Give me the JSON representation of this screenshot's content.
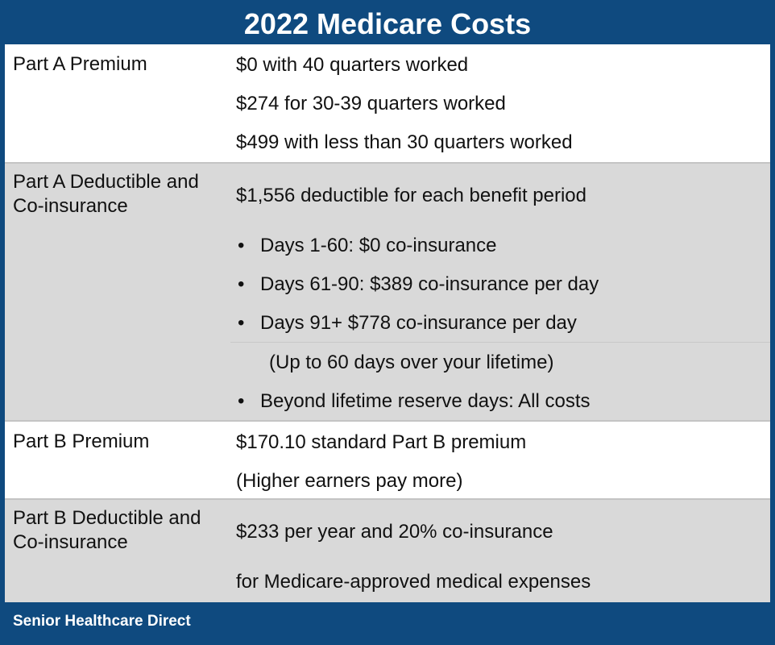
{
  "title": "2022 Medicare Costs",
  "colors": {
    "brand_blue": "#0f4a7f",
    "row_gray": "#d9d9d9",
    "row_white": "#ffffff"
  },
  "rows": [
    {
      "label": "Part A Premium",
      "lines": [
        "$0 with 40 quarters worked",
        "$274 for 30-39 quarters worked",
        "$499 with less than 30 quarters worked"
      ]
    },
    {
      "label_lines": [
        "Part A Deductible and",
        "Co-insurance"
      ],
      "lines": [
        "$1,556 deductible for each benefit period"
      ],
      "bullets": [
        "Days 1-60: $0 co-insurance",
        "Days 61-90: $389 co-insurance per day",
        "Days 91+ $778 co-insurance per day"
      ],
      "note": "(Up to 60 days over your lifetime)",
      "last_bullet": "Beyond lifetime reserve days: All costs"
    },
    {
      "label": "Part B Premium",
      "lines": [
        "$170.10 standard Part B premium",
        "(Higher earners pay more)"
      ]
    },
    {
      "label_lines": [
        "Part B Deductible and",
        "Co-insurance"
      ],
      "lines": [
        "$233 per year and 20% co-insurance",
        "for Medicare-approved medical expenses"
      ]
    }
  ],
  "bullet_char": "•",
  "footer": "Senior Healthcare Direct"
}
